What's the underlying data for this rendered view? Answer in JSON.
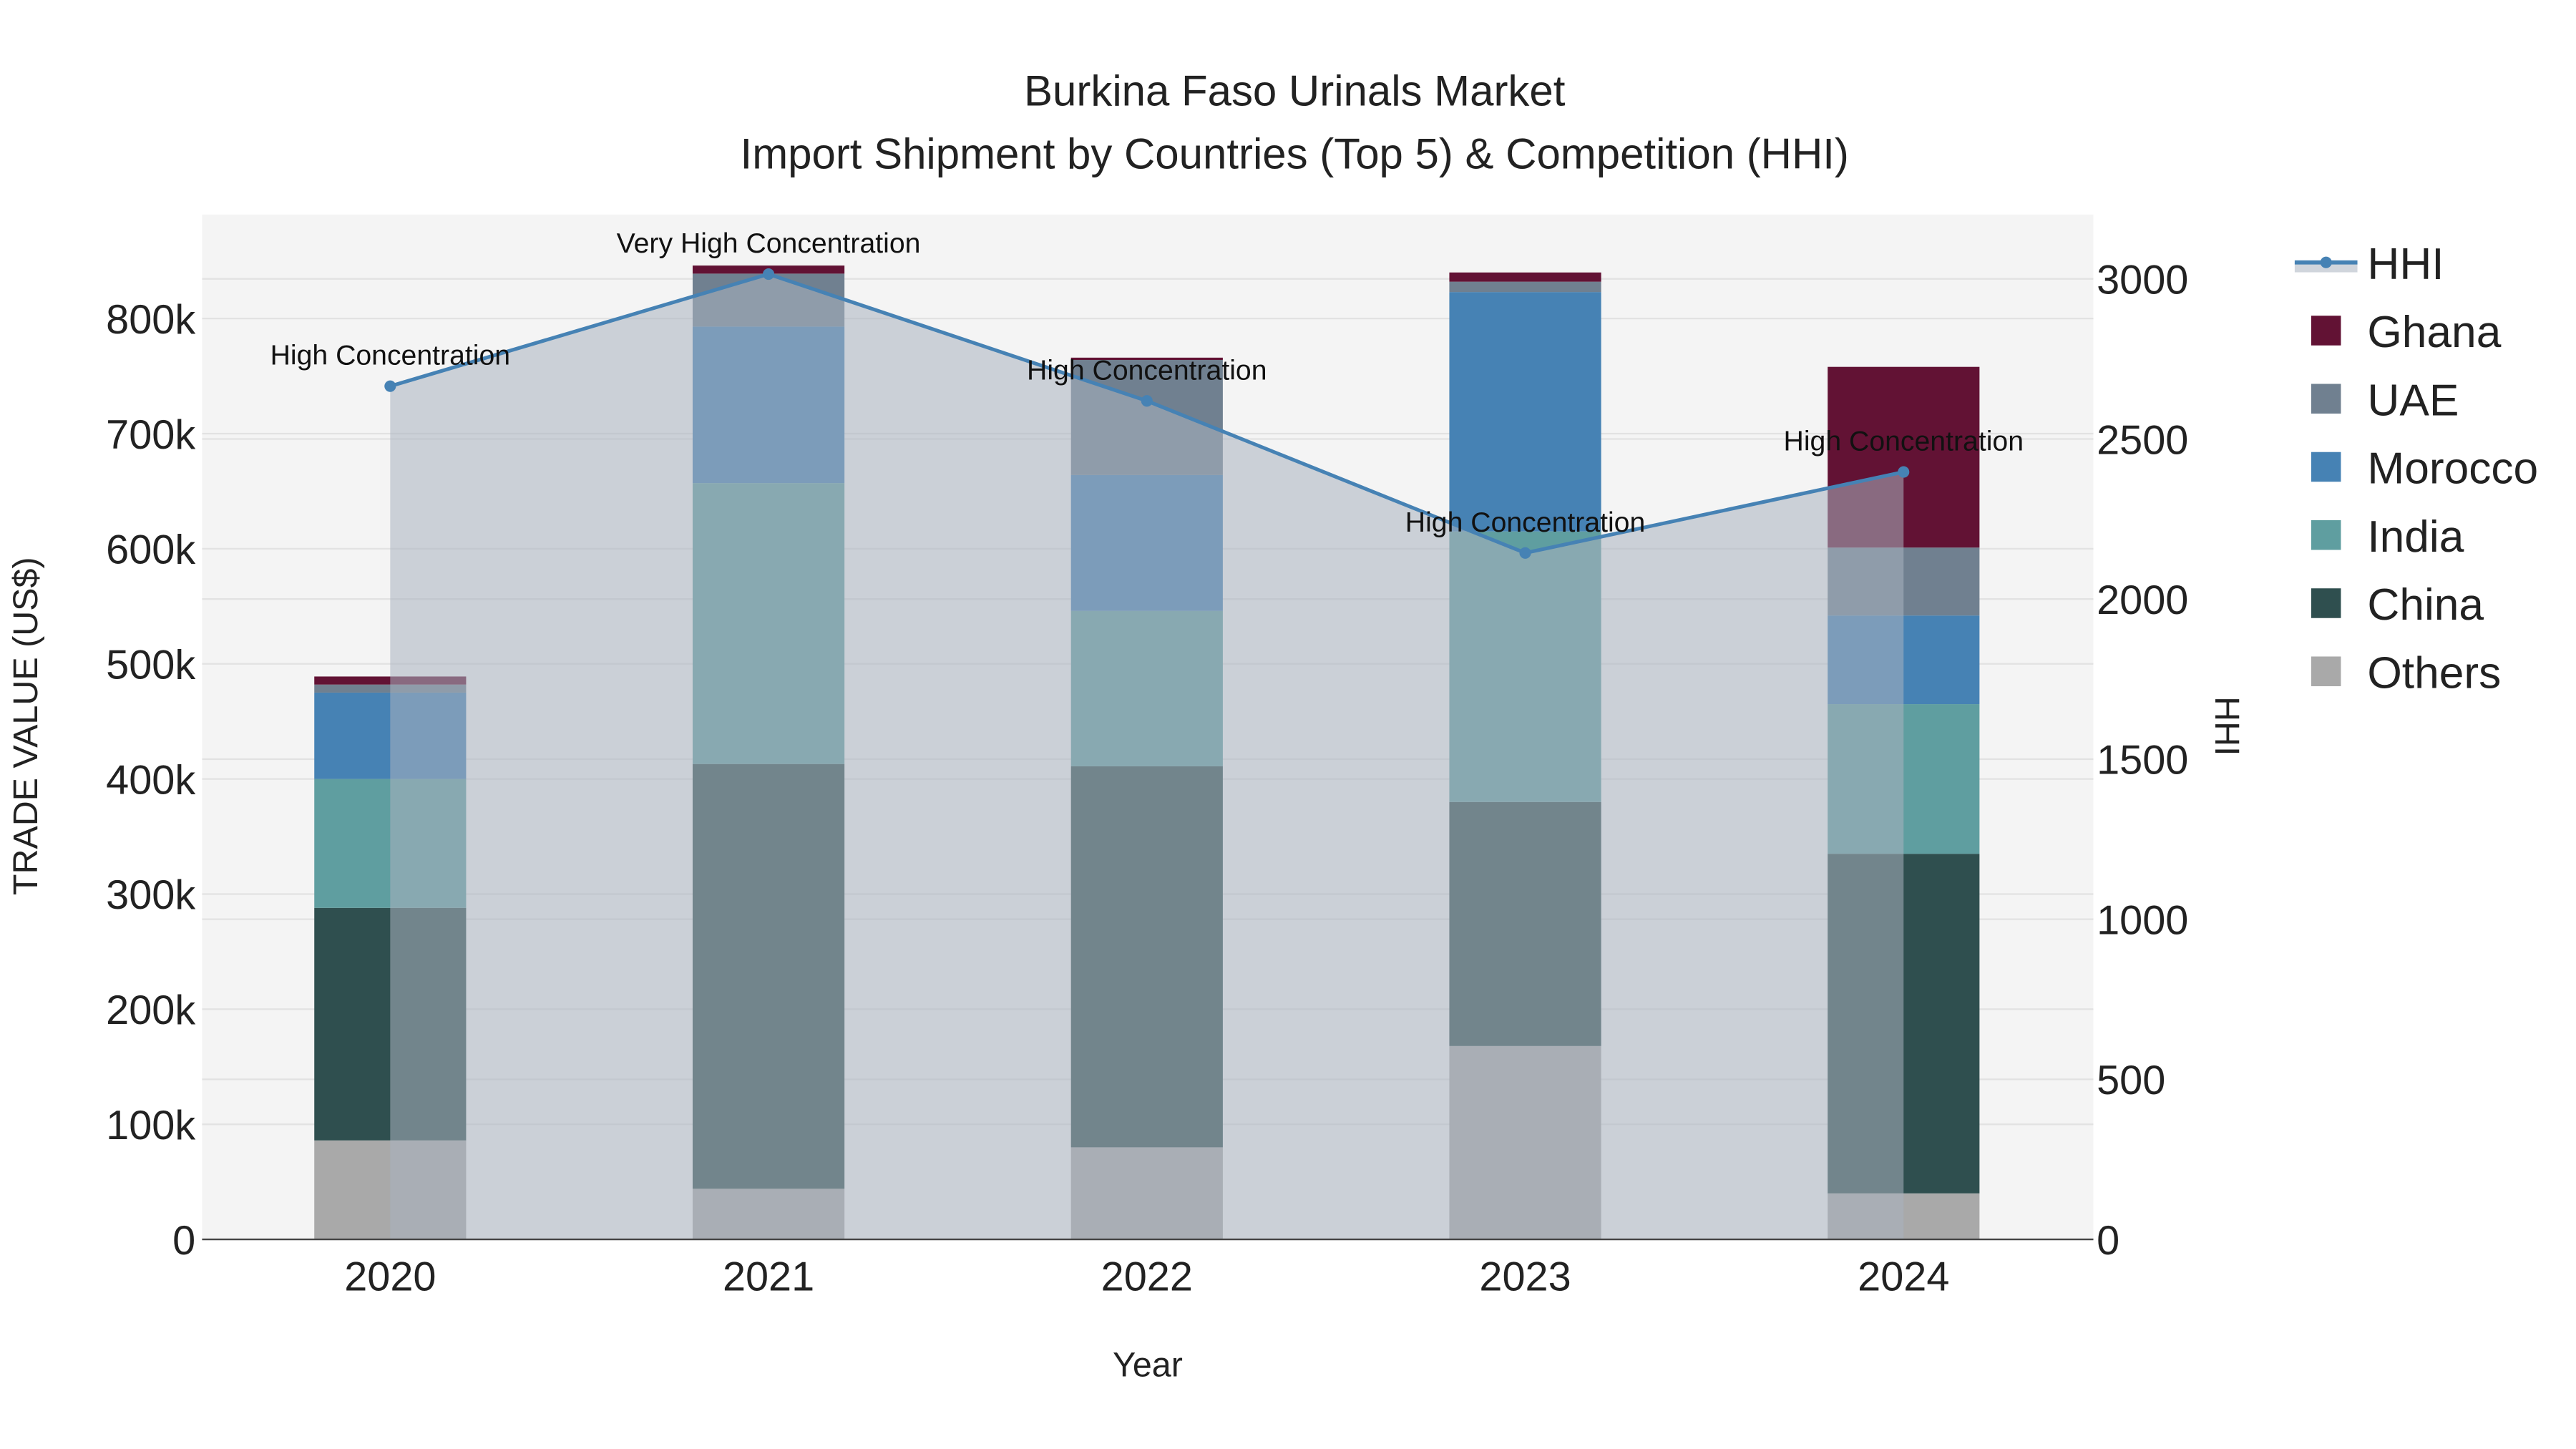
{
  "chart_data": {
    "type": "bar",
    "title": "Burkina Faso Urinals Market",
    "subtitle": "Import Shipment by Countries (Top 5) & Competition (HHI)",
    "xlabel": "Year",
    "ylabel": "TRADE VALUE (US$)",
    "y2label": "HHI",
    "categories": [
      "2020",
      "2021",
      "2022",
      "2023",
      "2024"
    ],
    "ylim": [
      0,
      900000
    ],
    "y2lim": [
      0,
      3200
    ],
    "yticks": [
      0,
      100000,
      200000,
      300000,
      400000,
      500000,
      600000,
      700000,
      800000
    ],
    "ytick_labels": [
      "0",
      "100k",
      "200k",
      "300k",
      "400k",
      "500k",
      "600k",
      "700k",
      "800k"
    ],
    "y2ticks": [
      0,
      500,
      1000,
      1500,
      2000,
      2500,
      3000
    ],
    "y2tick_labels": [
      "0",
      "500",
      "1000",
      "1500",
      "2000",
      "2500",
      "3000"
    ],
    "grid": true,
    "legend_position": "right",
    "series": [
      {
        "name": "Others",
        "color": "#a9a9a9",
        "values": [
          86000,
          44000,
          80000,
          168000,
          40000
        ]
      },
      {
        "name": "China",
        "color": "#2f4f4f",
        "values": [
          202000,
          369000,
          331000,
          212000,
          295000
        ]
      },
      {
        "name": "India",
        "color": "#5f9ea0",
        "values": [
          112000,
          244000,
          135000,
          235000,
          130000
        ]
      },
      {
        "name": "Morocco",
        "color": "#4682b4",
        "values": [
          75000,
          136000,
          118000,
          208000,
          77000
        ]
      },
      {
        "name": "UAE",
        "color": "#708090",
        "values": [
          7000,
          46000,
          100000,
          9000,
          59000
        ]
      },
      {
        "name": "Ghana",
        "color": "#621234",
        "values": [
          7000,
          7000,
          2000,
          8000,
          157000
        ]
      }
    ],
    "hhi": {
      "name": "HHI",
      "color": "#4682b4",
      "values": [
        2665,
        3015,
        2619,
        2144,
        2397
      ],
      "annotations": [
        "High Concentration",
        "Very High Concentration",
        "High Concentration",
        "High Concentration",
        "High Concentration"
      ]
    },
    "legend_order": [
      "HHI",
      "Ghana",
      "UAE",
      "Morocco",
      "India",
      "China",
      "Others"
    ]
  }
}
